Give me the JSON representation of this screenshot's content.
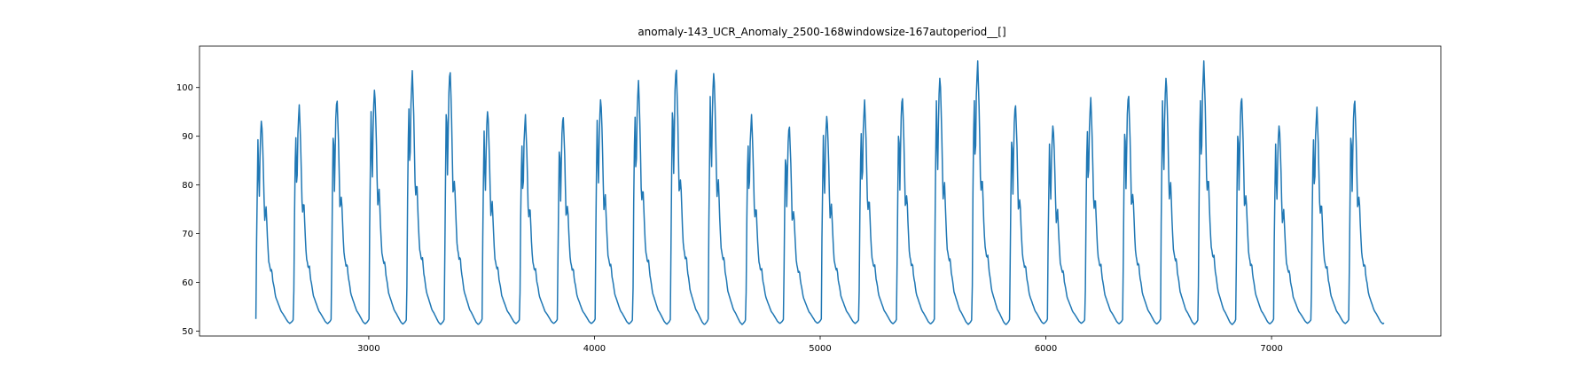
{
  "chart_data": {
    "type": "line",
    "title": "anomaly-143_UCR_Anomaly_2500-168windowsize-167autoperiod__[]",
    "xlabel": "",
    "ylabel": "",
    "xlim": [
      2250,
      7750
    ],
    "ylim": [
      49,
      108.5
    ],
    "grid": false,
    "x_ticks": [
      3000,
      4000,
      5000,
      6000,
      7000
    ],
    "x_tick_labels": [
      "3000",
      "4000",
      "5000",
      "6000",
      "7000"
    ],
    "y_ticks": [
      50,
      60,
      70,
      80,
      90,
      100
    ],
    "y_tick_labels": [
      "50",
      "60",
      "70",
      "80",
      "90",
      "100"
    ],
    "colors": {
      "series": "#1f77b4",
      "axes": "#000000",
      "background": "#ffffff"
    },
    "series": [
      {
        "x_start": 2500,
        "x_end": 7500,
        "period": 167,
        "pattern": {
          "phase": [
            0,
            0.02,
            0.055,
            0.085,
            0.115,
            0.15,
            0.19,
            0.23,
            0.27,
            0.31,
            0.34,
            0.37,
            0.39,
            0.42,
            0.45,
            0.48,
            0.52,
            0.57,
            0.62,
            0.67,
            0.72,
            0.76,
            0.8,
            0.84,
            0.87,
            0.9,
            0.93,
            0.96,
            0.98,
            1
          ],
          "value": [
            52.5,
            70,
            89,
            75,
            88,
            93,
            85,
            72,
            75,
            68,
            64,
            63,
            62,
            62.5,
            60,
            59,
            57,
            56,
            55,
            54,
            53.5,
            53,
            52.5,
            52,
            51.8,
            51.6,
            51.8,
            52,
            52.2,
            52.5
          ]
        },
        "cycle_peaks": [
          94,
          96.5,
          98.5,
          100.5,
          103.5,
          104.5,
          96,
          94.5,
          95,
          98.5,
          101.5,
          105,
          104,
          94.5,
          93,
          95,
          97.5,
          99,
          103,
          105.5,
          97.5,
          93,
          98,
          99.5,
          103,
          105.5,
          99,
          93,
          96,
          98.5
        ]
      }
    ]
  }
}
